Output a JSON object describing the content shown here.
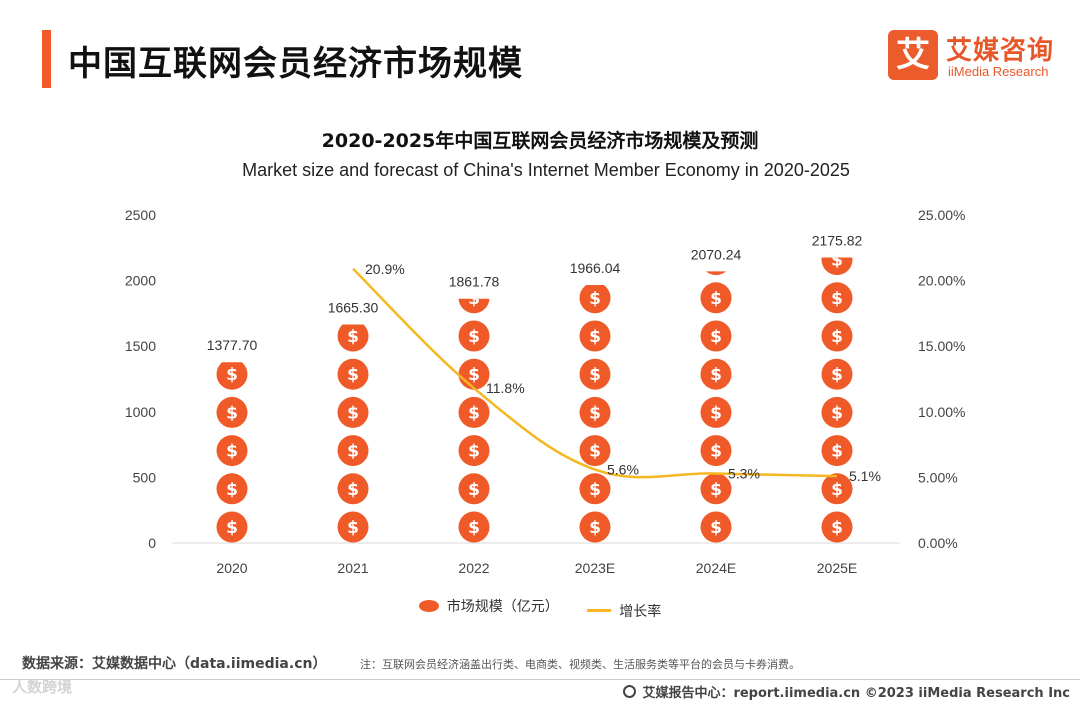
{
  "header": {
    "title": "中国互联网会员经济市场规模"
  },
  "logo": {
    "mark": "艾",
    "cn": "艾媒咨询",
    "en": "iiMedia Research"
  },
  "chart_data": {
    "type": "bar",
    "title": "2020-2025年中国互联网会员经济市场规模及预测",
    "subtitle": "Market size and forecast of China's Internet Member Economy in 2020-2025",
    "categories": [
      "2020",
      "2021",
      "2022",
      "2023E",
      "2024E",
      "2025E"
    ],
    "ylim": [
      0,
      2500
    ],
    "y_ticks": [
      "0",
      "500",
      "1000",
      "1500",
      "2000",
      "2500"
    ],
    "y2lim": [
      0,
      25
    ],
    "y2_ticks": [
      "0.00%",
      "5.00%",
      "10.00%",
      "15.00%",
      "20.00%",
      "25.00%"
    ],
    "series": [
      {
        "name": "市场规模（亿元）",
        "type": "pictorial-bar",
        "values": [
          1377.7,
          1665.3,
          1861.78,
          1966.04,
          2070.24,
          2175.82
        ],
        "labels": [
          "1377.70",
          "1665.30",
          "1861.78",
          "1966.04",
          "2070.24",
          "2175.82"
        ],
        "color": "#f05a28"
      },
      {
        "name": "增长率",
        "type": "line",
        "axis": "right",
        "values": [
          null,
          20.9,
          11.8,
          5.6,
          5.3,
          5.1
        ],
        "labels": [
          "",
          "20.9%",
          "11.8%",
          "5.6%",
          "5.3%",
          "5.1%"
        ],
        "color": "#f5b820"
      }
    ],
    "legend_position": "bottom",
    "grid": false
  },
  "footer": {
    "source": "数据来源：艾媒数据中心（data.iimedia.cn）",
    "note": "注：互联网会员经济涵盖出行类、电商类、视频类、生活服务类等平台的会员与卡券消费。",
    "watermark": "人数跨境",
    "report": "艾媒报告中心：report.iimedia.cn  ©2023  iiMedia Research  Inc"
  }
}
